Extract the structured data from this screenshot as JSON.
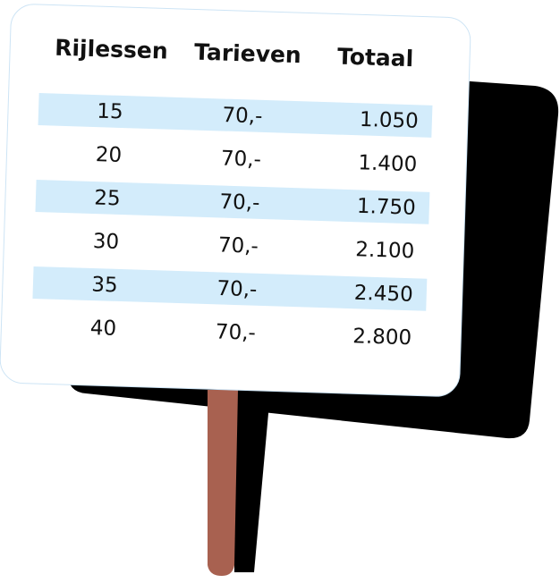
{
  "table": {
    "header": [
      "Rijlessen",
      "Tarieven",
      "Totaal"
    ],
    "rows": [
      [
        "15",
        "70,-",
        "1.050"
      ],
      [
        "20",
        "70,-",
        "1.400"
      ],
      [
        "25",
        "70,-",
        "1.750"
      ],
      [
        "30",
        "70,-",
        "2.100"
      ],
      [
        "35",
        "70,-",
        "2.450"
      ],
      [
        "40",
        "70,-",
        "2.800"
      ]
    ]
  }
}
